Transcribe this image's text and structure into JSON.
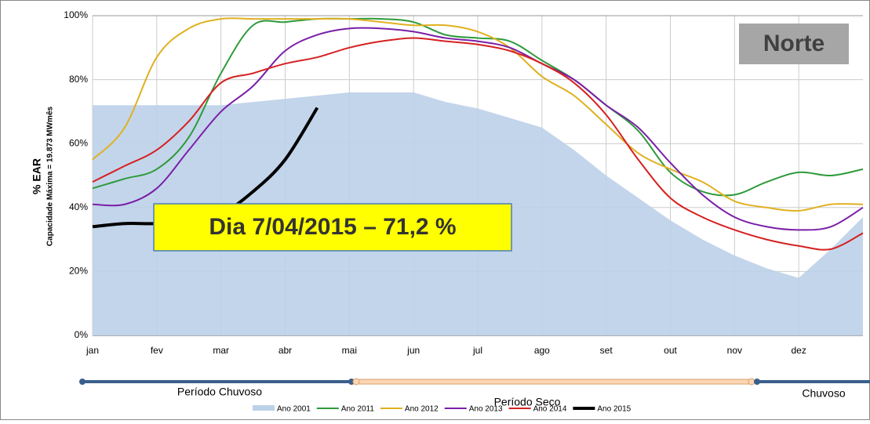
{
  "chart_data": {
    "type": "line",
    "y_label": "% EAR",
    "y_sublabel": "Capacidade Máxima = 19.873 MWmês",
    "badge": "Norte",
    "annotation": "Dia 7/04/2015 – 71,2 %",
    "periods": [
      "Período Chuvoso",
      "Período Seco",
      "Chuvoso"
    ],
    "categories": [
      "jan",
      null,
      "fev",
      null,
      "mar",
      null,
      "abr",
      null,
      "mai",
      null,
      "jun",
      null,
      "jul",
      null,
      "ago",
      null,
      "set",
      null,
      "out",
      null,
      "nov",
      null,
      "dez",
      null,
      null
    ],
    "ylim": [
      0,
      100
    ],
    "yticks": [
      {
        "value": 0,
        "label": "0%"
      },
      {
        "value": 20,
        "label": "20%"
      },
      {
        "value": 40,
        "label": "40%"
      },
      {
        "value": 60,
        "label": "60%"
      },
      {
        "value": 80,
        "label": "80%"
      },
      {
        "value": 100,
        "label": "100%"
      }
    ],
    "grid": true,
    "series": [
      {
        "name": "Ano 2001",
        "kind": "area",
        "color": "#bdd0e9",
        "values": [
          72,
          72,
          72,
          72,
          72,
          73,
          74,
          75,
          76,
          76,
          76,
          73,
          71,
          68,
          65,
          58,
          50,
          43,
          36,
          30,
          25,
          21,
          18,
          27,
          37
        ]
      },
      {
        "name": "Ano 2011",
        "color": "#2e9a3a",
        "values": [
          46,
          49,
          52,
          62,
          82,
          97,
          98,
          99,
          99,
          99,
          98,
          94,
          93,
          92,
          86,
          80,
          72,
          64,
          51,
          45,
          44,
          48,
          51,
          50,
          52
        ]
      },
      {
        "name": "Ano 2012",
        "color": "#e0b020",
        "values": [
          55,
          65,
          87,
          96,
          99,
          99,
          99,
          99,
          99,
          98,
          97,
          97,
          95,
          90,
          81,
          75,
          66,
          57,
          52,
          48,
          42,
          40,
          39,
          41,
          41
        ]
      },
      {
        "name": "Ano 2013",
        "color": "#7a1fa8",
        "values": [
          41,
          41,
          46,
          58,
          70,
          78,
          89,
          94,
          96,
          96,
          95,
          93,
          92,
          90,
          85,
          80,
          72,
          65,
          54,
          44,
          37,
          34,
          33,
          34,
          40
        ]
      },
      {
        "name": "Ano 2014",
        "color": "#d62020",
        "values": [
          48,
          53,
          58,
          67,
          79,
          82,
          85,
          87,
          90,
          92,
          93,
          92,
          91,
          89,
          85,
          79,
          69,
          55,
          43,
          37,
          33,
          30,
          28,
          27,
          32
        ]
      },
      {
        "name": "Ano 2015",
        "color": "#000000",
        "width": 4,
        "values": [
          34,
          35,
          35,
          36,
          38,
          45,
          55,
          71.2,
          null,
          null,
          null,
          null,
          null,
          null,
          null,
          null,
          null,
          null,
          null,
          null,
          null,
          null,
          null,
          null,
          null
        ]
      }
    ]
  }
}
